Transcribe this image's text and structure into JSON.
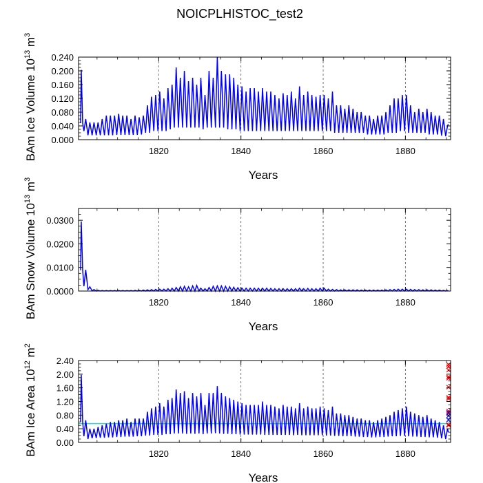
{
  "title": "NOICPLHISTOC_test2",
  "colors": {
    "series": "#0000ff",
    "grid": "#555555",
    "frame": "#000000",
    "reference": "#00dddd",
    "marker": "#ff0000"
  },
  "chart_data": [
    {
      "type": "line",
      "title": "",
      "xlabel": "Years",
      "ylabel_text": "BAm Ice Volume 10",
      "ylabel_exp": "13",
      "ylabel_unit": " m",
      "ylabel_unit_exp": "3",
      "xlim": [
        1800.5,
        1891.0
      ],
      "ylim": [
        0,
        0.24
      ],
      "x_ticks": [
        1820,
        1840,
        1860,
        1880
      ],
      "x_tick_labels": [
        "1820",
        "1840",
        "1860",
        "1880"
      ],
      "y_ticks": [
        0,
        0.04,
        0.08,
        0.12,
        0.16,
        0.2,
        0.24
      ],
      "y_tick_labels": [
        "0.000",
        "0.040",
        "0.080",
        "0.120",
        "0.160",
        "0.200",
        "0.240"
      ],
      "grid": "vertical dashed at labeled years",
      "start_year": 1801,
      "steps_per_year": 2,
      "initial_max": 0.203,
      "initial_min": 0.048,
      "peaks_by_year": {
        "1802": 0.06,
        "1803": 0.05,
        "1804": 0.05,
        "1805": 0.05,
        "1806": 0.06,
        "1807": 0.07,
        "1808": 0.07,
        "1809": 0.07,
        "1810": 0.075,
        "1811": 0.07,
        "1812": 0.07,
        "1813": 0.06,
        "1814": 0.07,
        "1815": 0.065,
        "1816": 0.07,
        "1817": 0.1,
        "1818": 0.125,
        "1819": 0.13,
        "1820": 0.14,
        "1821": 0.12,
        "1822": 0.15,
        "1823": 0.16,
        "1824": 0.21,
        "1825": 0.18,
        "1826": 0.2,
        "1827": 0.17,
        "1828": 0.18,
        "1829": 0.16,
        "1830": 0.18,
        "1831": 0.13,
        "1832": 0.2,
        "1833": 0.18,
        "1834": 0.24,
        "1835": 0.2,
        "1836": 0.19,
        "1837": 0.19,
        "1838": 0.18,
        "1839": 0.16,
        "1840": 0.155,
        "1841": 0.14,
        "1842": 0.15,
        "1843": 0.15,
        "1844": 0.14,
        "1845": 0.15,
        "1846": 0.14,
        "1847": 0.14,
        "1848": 0.13,
        "1849": 0.12,
        "1850": 0.135,
        "1851": 0.13,
        "1852": 0.14,
        "1853": 0.12,
        "1854": 0.155,
        "1855": 0.13,
        "1856": 0.14,
        "1857": 0.13,
        "1858": 0.125,
        "1859": 0.13,
        "1860": 0.13,
        "1861": 0.12,
        "1862": 0.14,
        "1863": 0.1,
        "1864": 0.1,
        "1865": 0.09,
        "1866": 0.1,
        "1867": 0.09,
        "1868": 0.08,
        "1869": 0.08,
        "1870": 0.07,
        "1871": 0.07,
        "1872": 0.06,
        "1873": 0.07,
        "1874": 0.07,
        "1875": 0.08,
        "1876": 0.1,
        "1877": 0.12,
        "1878": 0.12,
        "1879": 0.13,
        "1880": 0.13,
        "1881": 0.1,
        "1882": 0.08,
        "1883": 0.09,
        "1884": 0.08,
        "1885": 0.09,
        "1886": 0.08,
        "1887": 0.07,
        "1888": 0.07,
        "1889": 0.06,
        "1890": 0.04
      },
      "troughs_by_year": {
        "1802": 0.025,
        "1803": 0.013,
        "1804": 0.013,
        "1805": 0.013,
        "1806": 0.013,
        "1807": 0.013,
        "1808": 0.013,
        "1809": 0.013,
        "1810": 0.014,
        "1811": 0.014,
        "1812": 0.014,
        "1813": 0.014,
        "1814": 0.014,
        "1815": 0.014,
        "1816": 0.015,
        "1817": 0.02,
        "1818": 0.02,
        "1819": 0.025,
        "1820": 0.025,
        "1821": 0.025,
        "1822": 0.025,
        "1823": 0.03,
        "1824": 0.035,
        "1825": 0.035,
        "1826": 0.035,
        "1827": 0.035,
        "1828": 0.035,
        "1829": 0.035,
        "1830": 0.035,
        "1831": 0.03,
        "1832": 0.035,
        "1833": 0.035,
        "1834": 0.035,
        "1835": 0.035,
        "1836": 0.035,
        "1837": 0.03,
        "1838": 0.03,
        "1839": 0.03,
        "1840": 0.025,
        "1841": 0.025,
        "1842": 0.025,
        "1843": 0.025,
        "1844": 0.025,
        "1845": 0.025,
        "1846": 0.025,
        "1847": 0.025,
        "1848": 0.025,
        "1849": 0.025,
        "1850": 0.025,
        "1851": 0.025,
        "1852": 0.025,
        "1853": 0.025,
        "1854": 0.025,
        "1855": 0.025,
        "1856": 0.025,
        "1857": 0.025,
        "1858": 0.025,
        "1859": 0.025,
        "1860": 0.025,
        "1861": 0.025,
        "1862": 0.025,
        "1863": 0.02,
        "1864": 0.02,
        "1865": 0.02,
        "1866": 0.02,
        "1867": 0.02,
        "1868": 0.02,
        "1869": 0.02,
        "1870": 0.02,
        "1871": 0.015,
        "1872": 0.015,
        "1873": 0.015,
        "1874": 0.015,
        "1875": 0.015,
        "1876": 0.02,
        "1877": 0.02,
        "1878": 0.02,
        "1879": 0.025,
        "1880": 0.025,
        "1881": 0.02,
        "1882": 0.02,
        "1883": 0.02,
        "1884": 0.02,
        "1885": 0.02,
        "1886": 0.015,
        "1887": 0.015,
        "1888": 0.015,
        "1889": 0.012,
        "1890": 0.01
      },
      "final_value": 0.045
    },
    {
      "type": "line",
      "title": "",
      "xlabel": "Years",
      "ylabel_text": "BAm Snow Volume 10",
      "ylabel_exp": "13",
      "ylabel_unit": " m",
      "ylabel_unit_exp": "3",
      "xlim": [
        1800.5,
        1891.0
      ],
      "ylim": [
        0,
        0.035
      ],
      "x_ticks": [
        1820,
        1840,
        1860,
        1880
      ],
      "x_tick_labels": [
        "1820",
        "1840",
        "1860",
        "1880"
      ],
      "y_ticks": [
        0,
        0.01,
        0.02,
        0.03
      ],
      "y_tick_labels": [
        "0.0000",
        "0.0100",
        "0.0200",
        "0.0300"
      ],
      "grid": "vertical dashed at labeled years",
      "start_year": 1801,
      "steps_per_year": 2,
      "initial_max": 0.0295,
      "initial_min": 0.0088,
      "peaks_by_year": {
        "1802": 0.009,
        "1803": 0.0018,
        "1804": 0.0006,
        "1805": 0.0003,
        "1806": 0.0002,
        "1807": 0.0002,
        "1808": 0.0002,
        "1809": 0.0002,
        "1810": 0.0002,
        "1811": 0.0002,
        "1812": 0.0002,
        "1813": 0.0002,
        "1814": 0.0003,
        "1815": 0.0003,
        "1816": 0.0004,
        "1817": 0.0005,
        "1818": 0.0006,
        "1819": 0.0007,
        "1820": 0.0008,
        "1821": 0.0008,
        "1822": 0.001,
        "1823": 0.0012,
        "1824": 0.0015,
        "1825": 0.0018,
        "1826": 0.002,
        "1827": 0.0018,
        "1828": 0.0022,
        "1829": 0.0024,
        "1830": 0.0012,
        "1831": 0.001,
        "1832": 0.0015,
        "1833": 0.002,
        "1834": 0.0022,
        "1835": 0.0022,
        "1836": 0.002,
        "1837": 0.0018,
        "1838": 0.0016,
        "1839": 0.0014,
        "1840": 0.0012,
        "1841": 0.0012,
        "1842": 0.0012,
        "1843": 0.0012,
        "1844": 0.0012,
        "1845": 0.0012,
        "1846": 0.0012,
        "1847": 0.0011,
        "1848": 0.001,
        "1849": 0.001,
        "1850": 0.001,
        "1851": 0.001,
        "1852": 0.001,
        "1853": 0.001,
        "1854": 0.0012,
        "1855": 0.001,
        "1856": 0.0011,
        "1857": 0.001,
        "1858": 0.001,
        "1859": 0.0012,
        "1860": 0.0012,
        "1861": 0.0008,
        "1862": 0.0007,
        "1863": 0.0006,
        "1864": 0.0005,
        "1865": 0.0005,
        "1866": 0.0005,
        "1867": 0.0005,
        "1868": 0.0005,
        "1869": 0.0004,
        "1870": 0.0004,
        "1871": 0.0004,
        "1872": 0.0004,
        "1873": 0.0004,
        "1874": 0.0004,
        "1875": 0.0005,
        "1876": 0.0006,
        "1877": 0.0007,
        "1878": 0.0008,
        "1879": 0.0008,
        "1880": 0.0008,
        "1881": 0.0007,
        "1882": 0.0006,
        "1883": 0.0006,
        "1884": 0.0005,
        "1885": 0.0005,
        "1886": 0.0005,
        "1887": 0.0004,
        "1888": 0.0004,
        "1889": 0.0003,
        "1890": 0.0002
      },
      "troughs_by_year": {
        "1802": 0.002,
        "1803": 0.0006,
        "1804": 0.0001
      },
      "trough_default": 0.0,
      "final_value": 0.0
    },
    {
      "type": "line",
      "title": "",
      "xlabel": "Years",
      "ylabel_text": "BAm Ice Area 10",
      "ylabel_exp": "12",
      "ylabel_unit": " m",
      "ylabel_unit_exp": "2",
      "xlim": [
        1800.5,
        1891.0
      ],
      "ylim": [
        0,
        2.4
      ],
      "x_ticks": [
        1820,
        1840,
        1860,
        1880
      ],
      "x_tick_labels": [
        "1820",
        "1840",
        "1860",
        "1880"
      ],
      "y_ticks": [
        0,
        0.4,
        0.8,
        1.2,
        1.6,
        2.0,
        2.4
      ],
      "y_tick_labels": [
        "0.00",
        "0.40",
        "0.80",
        "1.20",
        "1.60",
        "2.00",
        "2.40"
      ],
      "grid": "vertical dashed at labeled years",
      "reference_line": 0.55,
      "markers": {
        "marker_x": 1890.5,
        "red_values": [
          2.28,
          2.22,
          2.12,
          1.92,
          1.88,
          1.62,
          1.32,
          1.28,
          0.92,
          0.85,
          0.52,
          0.5
        ],
        "blue_values": [
          0.88,
          0.78,
          0.66
        ]
      },
      "start_year": 1801,
      "steps_per_year": 2,
      "initial_max": 1.98,
      "initial_min": 0.6,
      "peaks_by_year": {
        "1802": 0.65,
        "1803": 0.4,
        "1804": 0.4,
        "1805": 0.45,
        "1806": 0.5,
        "1807": 0.55,
        "1808": 0.6,
        "1809": 0.6,
        "1810": 0.65,
        "1811": 0.65,
        "1812": 0.7,
        "1813": 0.6,
        "1814": 0.7,
        "1815": 0.7,
        "1816": 0.7,
        "1817": 0.9,
        "1818": 1.0,
        "1819": 1.05,
        "1820": 1.15,
        "1821": 1.05,
        "1822": 1.25,
        "1823": 1.3,
        "1824": 1.55,
        "1825": 1.45,
        "1826": 1.5,
        "1827": 1.3,
        "1828": 1.45,
        "1829": 1.35,
        "1830": 1.45,
        "1831": 1.1,
        "1832": 1.45,
        "1833": 1.45,
        "1834": 1.65,
        "1835": 1.45,
        "1836": 1.35,
        "1837": 1.3,
        "1838": 1.25,
        "1839": 1.2,
        "1840": 1.15,
        "1841": 1.1,
        "1842": 1.1,
        "1843": 1.1,
        "1844": 1.1,
        "1845": 1.2,
        "1846": 1.1,
        "1847": 1.1,
        "1848": 1.05,
        "1849": 1.0,
        "1850": 1.1,
        "1851": 1.05,
        "1852": 1.05,
        "1853": 1.0,
        "1854": 1.15,
        "1855": 1.0,
        "1856": 1.05,
        "1857": 1.0,
        "1858": 1.0,
        "1859": 1.05,
        "1860": 1.0,
        "1861": 0.95,
        "1862": 1.05,
        "1863": 0.85,
        "1864": 0.85,
        "1865": 0.8,
        "1866": 0.8,
        "1867": 0.75,
        "1868": 0.7,
        "1869": 0.7,
        "1870": 0.65,
        "1871": 0.65,
        "1872": 0.6,
        "1873": 0.65,
        "1874": 0.7,
        "1875": 0.75,
        "1876": 0.8,
        "1877": 0.9,
        "1878": 0.95,
        "1879": 1.0,
        "1880": 1.05,
        "1881": 0.9,
        "1882": 0.85,
        "1883": 0.8,
        "1884": 0.75,
        "1885": 0.8,
        "1886": 0.7,
        "1887": 0.65,
        "1888": 0.6,
        "1889": 0.5,
        "1890": 0.4
      },
      "troughs_by_year": {
        "1802": 0.18,
        "1803": 0.1,
        "1804": 0.12,
        "1805": 0.13,
        "1806": 0.14,
        "1807": 0.14,
        "1808": 0.15,
        "1809": 0.15,
        "1810": 0.16,
        "1811": 0.16,
        "1812": 0.17,
        "1813": 0.17,
        "1814": 0.17,
        "1815": 0.18,
        "1816": 0.18,
        "1817": 0.2,
        "1818": 0.2,
        "1819": 0.22,
        "1820": 0.22,
        "1821": 0.22,
        "1822": 0.24,
        "1823": 0.24,
        "1824": 0.26,
        "1825": 0.26,
        "1826": 0.26,
        "1827": 0.25,
        "1828": 0.26,
        "1829": 0.25,
        "1830": 0.26,
        "1831": 0.24,
        "1832": 0.26,
        "1833": 0.26,
        "1834": 0.27,
        "1835": 0.26,
        "1836": 0.25,
        "1837": 0.25,
        "1838": 0.24,
        "1839": 0.24,
        "1840": 0.23,
        "1841": 0.23,
        "1842": 0.23,
        "1843": 0.23,
        "1844": 0.23,
        "1845": 0.23,
        "1846": 0.22,
        "1847": 0.22,
        "1848": 0.22,
        "1849": 0.22,
        "1850": 0.22,
        "1851": 0.22,
        "1852": 0.22,
        "1853": 0.21,
        "1854": 0.22,
        "1855": 0.21,
        "1856": 0.21,
        "1857": 0.21,
        "1858": 0.21,
        "1859": 0.21,
        "1860": 0.21,
        "1861": 0.2,
        "1862": 0.2,
        "1863": 0.19,
        "1864": 0.19,
        "1865": 0.18,
        "1866": 0.18,
        "1867": 0.18,
        "1868": 0.17,
        "1869": 0.17,
        "1870": 0.16,
        "1871": 0.16,
        "1872": 0.15,
        "1873": 0.15,
        "1874": 0.16,
        "1875": 0.16,
        "1876": 0.17,
        "1877": 0.18,
        "1878": 0.18,
        "1879": 0.19,
        "1880": 0.19,
        "1881": 0.18,
        "1882": 0.17,
        "1883": 0.17,
        "1884": 0.16,
        "1885": 0.16,
        "1886": 0.15,
        "1887": 0.15,
        "1888": 0.14,
        "1889": 0.12,
        "1890": 0.1
      },
      "final_value": 0.3
    }
  ]
}
